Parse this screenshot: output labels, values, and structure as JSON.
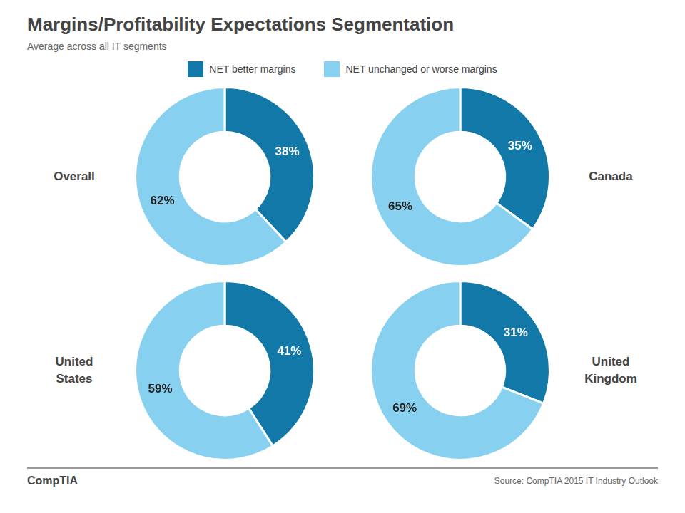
{
  "title": "Margins/Profitability Expectations Segmentation",
  "subtitle": "Average across all IT segments",
  "annotations": [
    "CompTIA",
    "Source: CompTIA 2015 IT Industry Outlook"
  ],
  "chart_data": [
    {
      "type": "doughnut",
      "title": "Overall",
      "categories": [
        "NET better margins",
        "NET unchanged or worse margins"
      ],
      "values": [
        38,
        62
      ],
      "value_labels": [
        "38%",
        "62%"
      ],
      "colors": [
        "#1278a8",
        "#87d0f0"
      ],
      "data_labels": true,
      "legend": "top"
    },
    {
      "type": "doughnut",
      "title": "Canada",
      "categories": [
        "NET better margins",
        "NET unchanged or worse margins"
      ],
      "values": [
        35,
        65
      ],
      "value_labels": [
        "35%",
        "65%"
      ],
      "colors": [
        "#1278a8",
        "#87d0f0"
      ],
      "data_labels": true
    },
    {
      "type": "doughnut",
      "title": "United\nStates",
      "categories": [
        "NET better margins",
        "NET unchanged or worse margins"
      ],
      "values": [
        41,
        59
      ],
      "value_labels": [
        "41%",
        "59%"
      ],
      "colors": [
        "#1278a8",
        "#87d0f0"
      ],
      "data_labels": true
    },
    {
      "type": "doughnut",
      "title": "United\nKingdom",
      "categories": [
        "NET better margins",
        "NET unchanged or worse margins"
      ],
      "values": [
        31,
        69
      ],
      "value_labels": [
        "31%",
        "69%"
      ],
      "colors": [
        "#1278a8",
        "#87d0f0"
      ],
      "data_labels": true
    }
  ]
}
